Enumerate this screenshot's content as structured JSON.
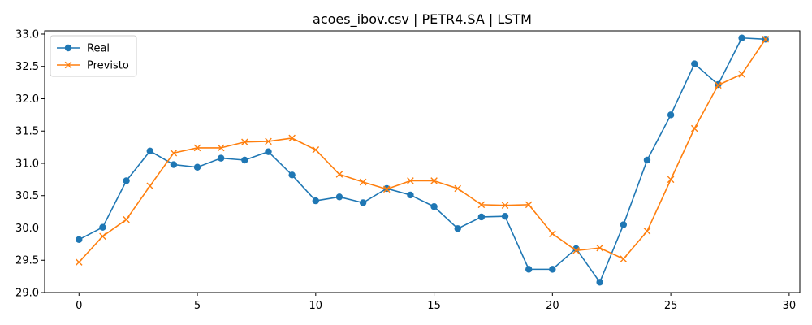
{
  "chart_data": {
    "type": "line",
    "title": "acoes_ibov.csv | PETR4.SA | LSTM",
    "xlabel": "",
    "ylabel": "",
    "xlim": [
      -1.45,
      30.45
    ],
    "ylim": [
      29.0,
      33.05
    ],
    "xticks": [
      0,
      5,
      10,
      15,
      20,
      25,
      30
    ],
    "yticks": [
      29.0,
      29.5,
      30.0,
      30.5,
      31.0,
      31.5,
      32.0,
      32.5,
      33.0
    ],
    "xtick_labels": [
      "0",
      "5",
      "10",
      "15",
      "20",
      "25",
      "30"
    ],
    "ytick_labels": [
      "29.0",
      "29.5",
      "30.0",
      "30.5",
      "31.0",
      "31.5",
      "32.0",
      "32.5",
      "33.0"
    ],
    "grid": false,
    "legend": "top-left",
    "x": [
      0,
      1,
      2,
      3,
      4,
      5,
      6,
      7,
      8,
      9,
      10,
      11,
      12,
      13,
      14,
      15,
      16,
      17,
      18,
      19,
      20,
      21,
      22,
      23,
      24,
      25,
      26,
      27,
      28,
      29
    ],
    "series": [
      {
        "name": "Real",
        "color": "#1f77b4",
        "marker": "circle",
        "values": [
          29.82,
          30.01,
          30.73,
          31.19,
          30.98,
          30.94,
          31.08,
          31.05,
          31.18,
          30.82,
          30.42,
          30.48,
          30.39,
          30.61,
          30.51,
          30.33,
          29.99,
          30.17,
          30.18,
          29.36,
          29.36,
          29.68,
          29.16,
          30.05,
          31.05,
          31.75,
          32.54,
          32.22,
          32.94,
          32.92
        ]
      },
      {
        "name": "Previsto",
        "color": "#ff7f0e",
        "marker": "x",
        "values": [
          29.47,
          29.87,
          30.13,
          30.65,
          31.16,
          31.24,
          31.24,
          31.33,
          31.34,
          31.39,
          31.21,
          30.83,
          30.71,
          30.6,
          30.73,
          30.73,
          30.61,
          30.36,
          30.35,
          30.36,
          29.91,
          29.65,
          29.69,
          29.52,
          29.95,
          30.75,
          31.54,
          32.21,
          32.38,
          32.92
        ]
      }
    ]
  }
}
